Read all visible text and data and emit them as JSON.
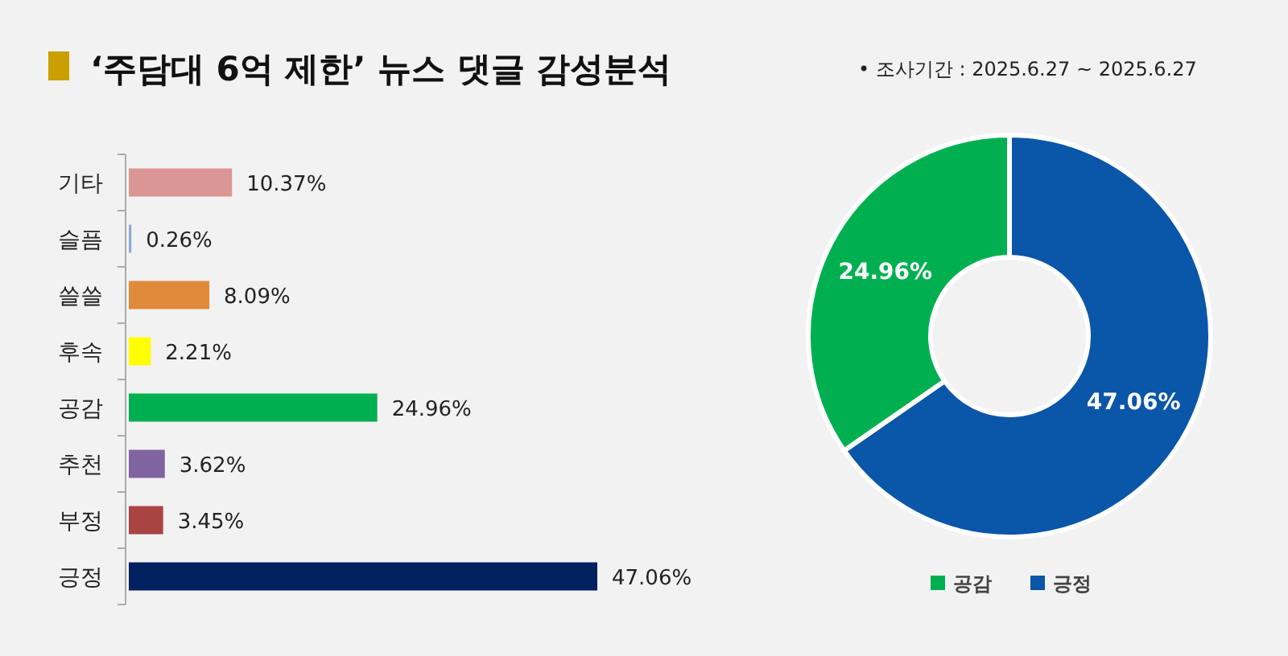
{
  "chart_data": [
    {
      "type": "bar",
      "orientation": "horizontal",
      "title": "‘주담대 6억 제한’ 뉴스 댓글 감성분석",
      "categories": [
        "기타",
        "슬픔",
        "쓸쓸",
        "후속",
        "공감",
        "추천",
        "부정",
        "긍정"
      ],
      "values": [
        10.37,
        0.26,
        8.09,
        2.21,
        24.96,
        3.62,
        3.45,
        47.06
      ],
      "value_labels": [
        "10.37%",
        "0.26%",
        "8.09%",
        "2.21%",
        "24.96%",
        "3.62%",
        "3.45%",
        "47.06%"
      ],
      "colors": [
        "#d99694",
        "#8ea9db",
        "#e08a3c",
        "#ffff00",
        "#00b050",
        "#8064a2",
        "#a94442",
        "#002060"
      ]
    },
    {
      "type": "donut",
      "annotations": [
        "•  조사기간 : 2025.6.27 ~ 2025.6.27"
      ],
      "categories": [
        "공감",
        "긍정"
      ],
      "values": [
        24.96,
        47.06
      ],
      "value_labels": [
        "24.96%",
        "47.06%"
      ],
      "colors": [
        "#00b050",
        "#0a56a8"
      ],
      "legend": "bottom"
    }
  ]
}
